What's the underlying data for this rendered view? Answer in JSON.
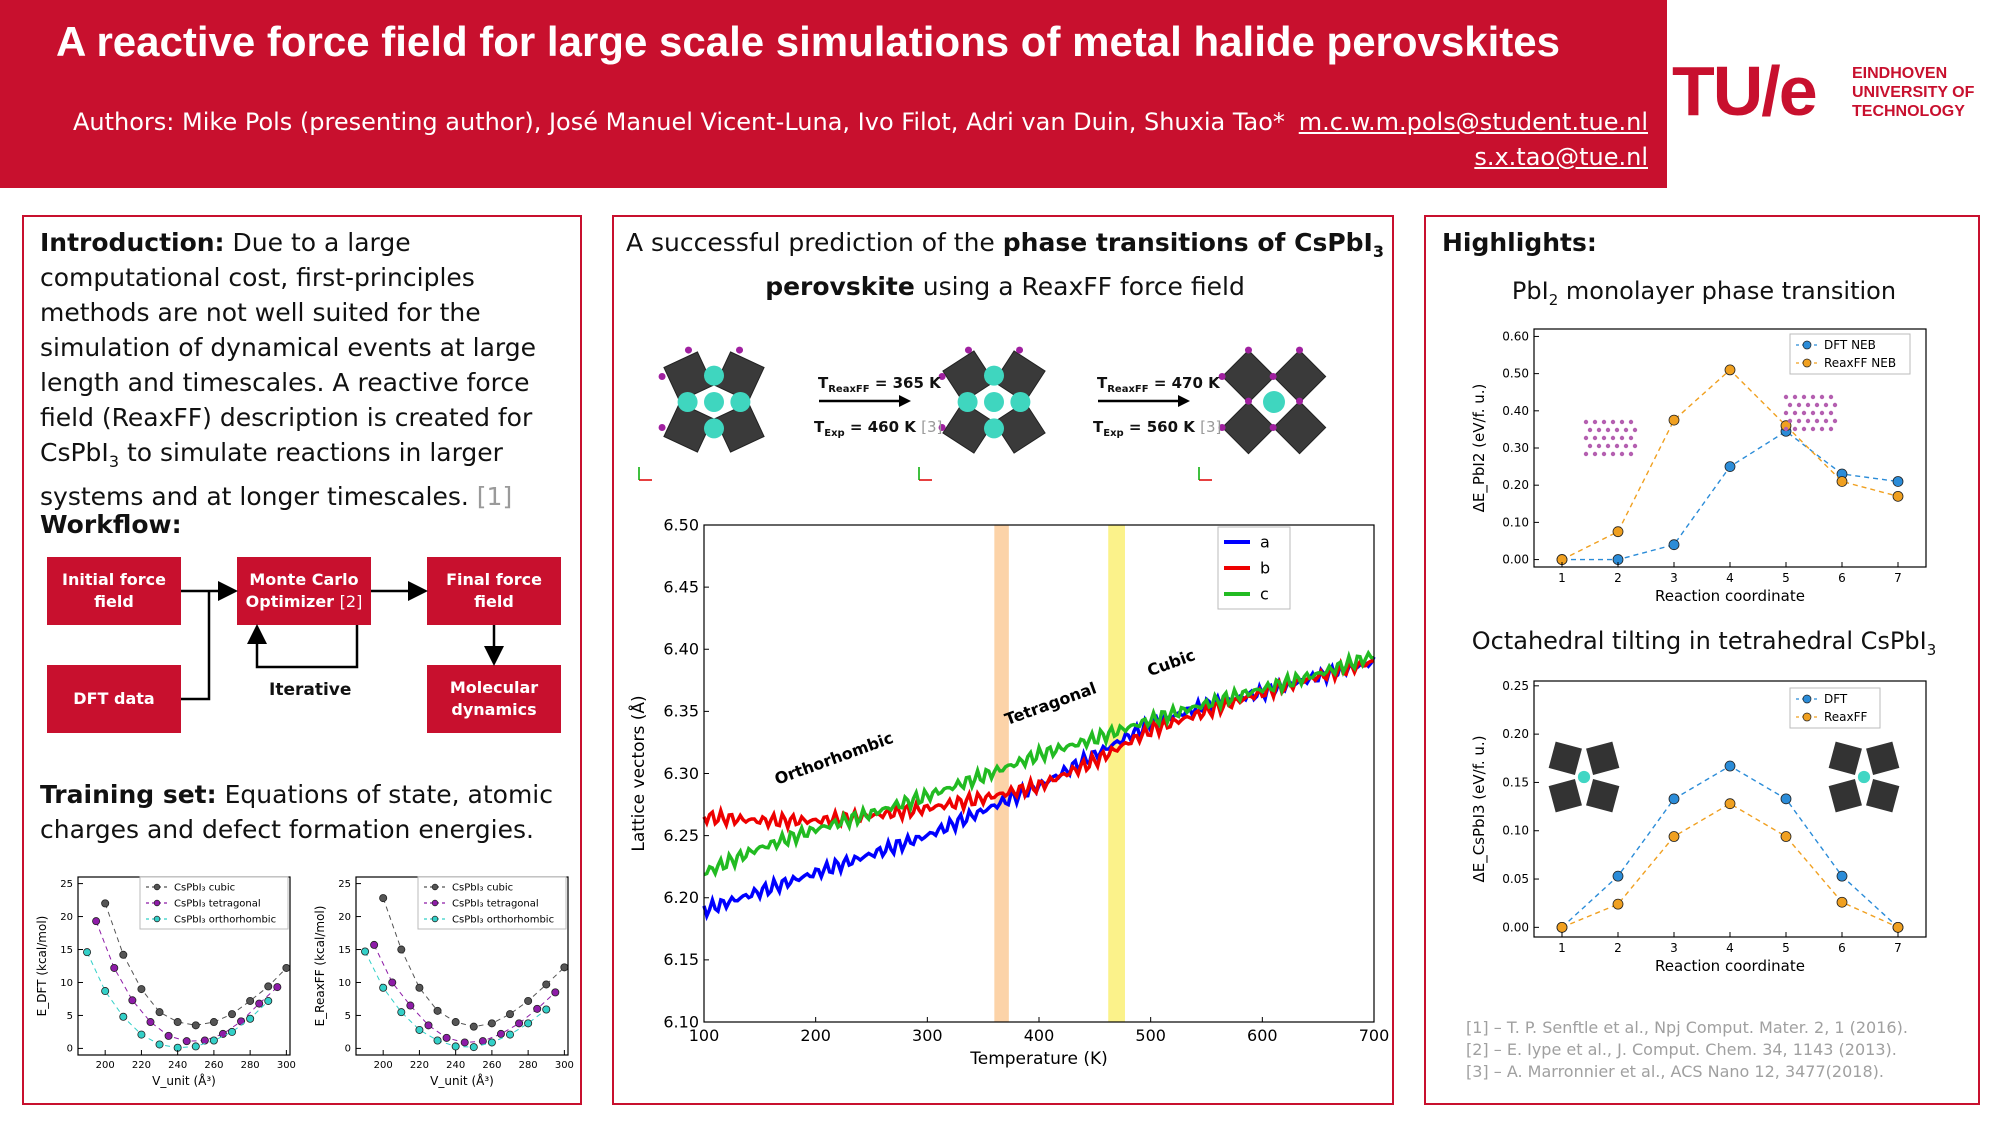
{
  "header": {
    "title": "A reactive force field for large scale simulations of metal halide perovskites",
    "authors": "Authors: Mike Pols (presenting author), José Manuel Vicent-Luna, Ivo Filot, Adri van Duin, Shuxia Tao*",
    "email1": "m.c.w.m.pols@student.tue.nl",
    "email2": "s.x.tao@tue.nl",
    "logo_mark": "TU/e",
    "logo_lines": [
      "EINDHOVEN",
      "UNIVERSITY OF",
      "TECHNOLOGY"
    ]
  },
  "colors": {
    "brand_red": "#c8102e",
    "series_a": "#0000ff",
    "series_b": "#ee0000",
    "series_c": "#22bb22",
    "dft": "#2b8cd8",
    "reaxff": "#f0a020",
    "cubic": "#555555",
    "tetragonal": "#8e1ca8",
    "orthorhombic": "#33d0c8"
  },
  "left": {
    "intro_label": "Introduction:",
    "intro_text": "Due to a large computational cost, first-principles methods are not well suited for the simulation of dynamical events at large length and timescales. A reactive force field (ReaxFF) description is created for CsPbI",
    "intro_sub": "3",
    "intro_text2": " to simulate reactions in larger systems and at longer timescales.",
    "intro_ref": "[1]",
    "workflow_label": "Workflow:",
    "wf_initial": "Initial force field",
    "wf_mc": "Monte Carlo Optimizer",
    "wf_mc_ref": "[2]",
    "wf_final": "Final force field",
    "wf_dft": "DFT data",
    "wf_iterative": "Iterative",
    "wf_md": "Molecular dynamics",
    "training_label": "Training set:",
    "training_text": "Equations of state, atomic charges and defect formation energies."
  },
  "middle": {
    "heading_a": "A successful prediction of the ",
    "heading_b": "phase transitions of CsPbI",
    "heading_sub": "3",
    "heading_c": "perovskite",
    "heading_d": " using a ReaxFF force field",
    "t1_reaxff": "= 365 K",
    "t1_exp": "= 460 K",
    "t2_reaxff": "= 470 K",
    "t2_exp": "= 560 K",
    "t_label": "T",
    "sub_reaxff": "ReaxFF",
    "sub_exp": "Exp",
    "ref3": "[3]"
  },
  "right": {
    "highlights_label": "Highlights:",
    "pbi2_title": "PbI",
    "pbi2_sub": "2",
    "pbi2_title_rest": " monolayer phase transition",
    "octa_title": "Octahedral tilting in tetrahedral CsPbI",
    "octa_sub": "3",
    "refs": [
      "[1] – T. P. Senftle et al., Npj Comput. Mater. 2, 1 (2016).",
      "[2] – E. Iype et al., J. Comput. Chem. 34, 1143 (2013).",
      "[3] – A. Marronnier et al., ACS Nano 12, 3477(2018)."
    ]
  },
  "chart_data": [
    {
      "type": "line",
      "xlabel": "Temperature (K)",
      "ylabel": "Lattice vectors (Å)",
      "xlim": [
        100,
        700
      ],
      "ylim": [
        6.1,
        6.5
      ],
      "xticks": [
        "100",
        "200",
        "300",
        "400",
        "500",
        "600",
        "700"
      ],
      "yticks": [
        "6.10",
        "6.15",
        "6.20",
        "6.25",
        "6.30",
        "6.35",
        "6.40",
        "6.45",
        "6.50"
      ],
      "legend": "top-right",
      "series": [
        {
          "name": "a",
          "color": "#0000ff",
          "x": [
            100,
            150,
            200,
            250,
            300,
            350,
            400,
            450,
            500,
            550,
            600,
            650,
            700
          ],
          "y": [
            6.19,
            6.205,
            6.22,
            6.235,
            6.25,
            6.27,
            6.29,
            6.315,
            6.34,
            6.355,
            6.365,
            6.378,
            6.39
          ]
        },
        {
          "name": "b",
          "color": "#ee0000",
          "x": [
            100,
            150,
            200,
            250,
            300,
            350,
            400,
            450,
            500,
            550,
            600,
            650,
            700
          ],
          "y": [
            6.265,
            6.262,
            6.262,
            6.266,
            6.272,
            6.28,
            6.29,
            6.31,
            6.335,
            6.35,
            6.365,
            6.378,
            6.39
          ]
        },
        {
          "name": "c",
          "color": "#22bb22",
          "x": [
            100,
            150,
            200,
            250,
            300,
            350,
            400,
            450,
            500,
            550,
            600,
            650,
            700
          ],
          "y": [
            6.22,
            6.24,
            6.255,
            6.268,
            6.282,
            6.298,
            6.315,
            6.328,
            6.343,
            6.356,
            6.368,
            6.38,
            6.395
          ]
        }
      ],
      "bands": [
        {
          "x0": 360,
          "x1": 373,
          "color": "#fcd3a8"
        },
        {
          "x0": 462,
          "x1": 477,
          "color": "#fbf28a"
        }
      ],
      "annotations": [
        "Orthorhombic",
        "Tetragonal",
        "Cubic"
      ]
    },
    {
      "type": "line",
      "title": "PbI2 monolayer phase transition",
      "xlabel": "Reaction coordinate",
      "ylabel": "ΔE_PbI2 (eV/f. u.)",
      "xlim": [
        0.5,
        7.5
      ],
      "ylim": [
        -0.02,
        0.62
      ],
      "xticks": [
        "1",
        "2",
        "3",
        "4",
        "5",
        "6",
        "7"
      ],
      "yticks": [
        "0.00",
        "0.10",
        "0.20",
        "0.30",
        "0.40",
        "0.50",
        "0.60"
      ],
      "legend": "top-right",
      "series": [
        {
          "name": "DFT NEB",
          "color": "#2b8cd8",
          "x": [
            1,
            2,
            3,
            4,
            5,
            6,
            7
          ],
          "y": [
            0.0,
            0.0,
            0.04,
            0.25,
            0.345,
            0.23,
            0.21
          ]
        },
        {
          "name": "ReaxFF NEB",
          "color": "#f0a020",
          "x": [
            1,
            2,
            3,
            4,
            5,
            6,
            7
          ],
          "y": [
            0.0,
            0.075,
            0.375,
            0.51,
            0.36,
            0.21,
            0.17
          ]
        }
      ]
    },
    {
      "type": "line",
      "title": "Octahedral tilting in tetrahedral CsPbI3",
      "xlabel": "Reaction coordinate",
      "ylabel": "ΔE_CsPbI3 (eV/f. u.)",
      "xlim": [
        0.5,
        7.5
      ],
      "ylim": [
        -0.01,
        0.255
      ],
      "xticks": [
        "1",
        "2",
        "3",
        "4",
        "5",
        "6",
        "7"
      ],
      "yticks": [
        "0.00",
        "0.05",
        "0.10",
        "0.15",
        "0.20",
        "0.25"
      ],
      "legend": "top-right",
      "series": [
        {
          "name": "DFT",
          "color": "#2b8cd8",
          "x": [
            1,
            2,
            3,
            4,
            5,
            6,
            7
          ],
          "y": [
            0.0,
            0.053,
            0.133,
            0.167,
            0.133,
            0.053,
            0.0
          ]
        },
        {
          "name": "ReaxFF",
          "color": "#f0a020",
          "x": [
            1,
            2,
            3,
            4,
            5,
            6,
            7
          ],
          "y": [
            0.0,
            0.024,
            0.094,
            0.128,
            0.094,
            0.026,
            0.0
          ]
        }
      ]
    },
    {
      "type": "line",
      "xlabel": "V_unit (Å³)",
      "ylabel": "E_DFT (kcal/mol)",
      "xlim": [
        185,
        302
      ],
      "ylim": [
        -1,
        26
      ],
      "xticks": [
        "200",
        "220",
        "240",
        "260",
        "280",
        "300"
      ],
      "yticks": [
        "0",
        "5",
        "10",
        "15",
        "20",
        "25"
      ],
      "legend": "top-right",
      "series": [
        {
          "name": "CsPbI₃ cubic",
          "color": "#555555",
          "x": [
            200,
            210,
            220,
            230,
            240,
            250,
            260,
            270,
            280,
            290,
            300
          ],
          "y": [
            22,
            14.2,
            9,
            5.5,
            4,
            3.5,
            4,
            5.2,
            7.2,
            9.4,
            12.2
          ]
        },
        {
          "name": "CsPbI₃ tetragonal",
          "color": "#8e1ca8",
          "x": [
            195,
            205,
            215,
            225,
            235,
            245,
            255,
            265,
            275,
            285,
            295
          ],
          "y": [
            19.3,
            12.2,
            7.3,
            4,
            1.9,
            1.1,
            1.2,
            2.2,
            4.1,
            6.8,
            9.3
          ]
        },
        {
          "name": "CsPbI₃ orthorhombic",
          "color": "#33d0c8",
          "x": [
            190,
            200,
            210,
            220,
            230,
            240,
            250,
            260,
            270,
            280,
            290
          ],
          "y": [
            14.6,
            8.7,
            4.8,
            2.1,
            0.6,
            0.1,
            0.3,
            1.2,
            2.5,
            4.5,
            7.2
          ]
        }
      ]
    },
    {
      "type": "line",
      "xlabel": "V_unit (Å³)",
      "ylabel": "E_ReaxFF (kcal/mol)",
      "xlim": [
        185,
        302
      ],
      "ylim": [
        -1,
        26
      ],
      "xticks": [
        "200",
        "220",
        "240",
        "260",
        "280",
        "300"
      ],
      "yticks": [
        "0",
        "5",
        "10",
        "15",
        "20",
        "25"
      ],
      "legend": "top-right",
      "series": [
        {
          "name": "CsPbI₃ cubic",
          "color": "#555555",
          "x": [
            200,
            210,
            220,
            230,
            240,
            250,
            260,
            270,
            280,
            290,
            300
          ],
          "y": [
            22.8,
            15,
            9.2,
            5.7,
            4,
            3.3,
            3.8,
            5.2,
            7.2,
            9.7,
            12.3
          ]
        },
        {
          "name": "CsPbI₃ tetragonal",
          "color": "#8e1ca8",
          "x": [
            195,
            205,
            215,
            225,
            235,
            245,
            255,
            265,
            275,
            285,
            295
          ],
          "y": [
            15.7,
            10,
            6.5,
            3.5,
            1.6,
            0.9,
            1.1,
            2.2,
            3.8,
            6,
            8.5
          ]
        },
        {
          "name": "CsPbI₃ orthorhombic",
          "color": "#33d0c8",
          "x": [
            190,
            200,
            210,
            220,
            230,
            240,
            250,
            260,
            270,
            280,
            290
          ],
          "y": [
            14.7,
            9.2,
            5.5,
            2.8,
            1.2,
            0.3,
            0.2,
            0.9,
            2.1,
            3.8,
            5.9
          ]
        }
      ]
    }
  ]
}
